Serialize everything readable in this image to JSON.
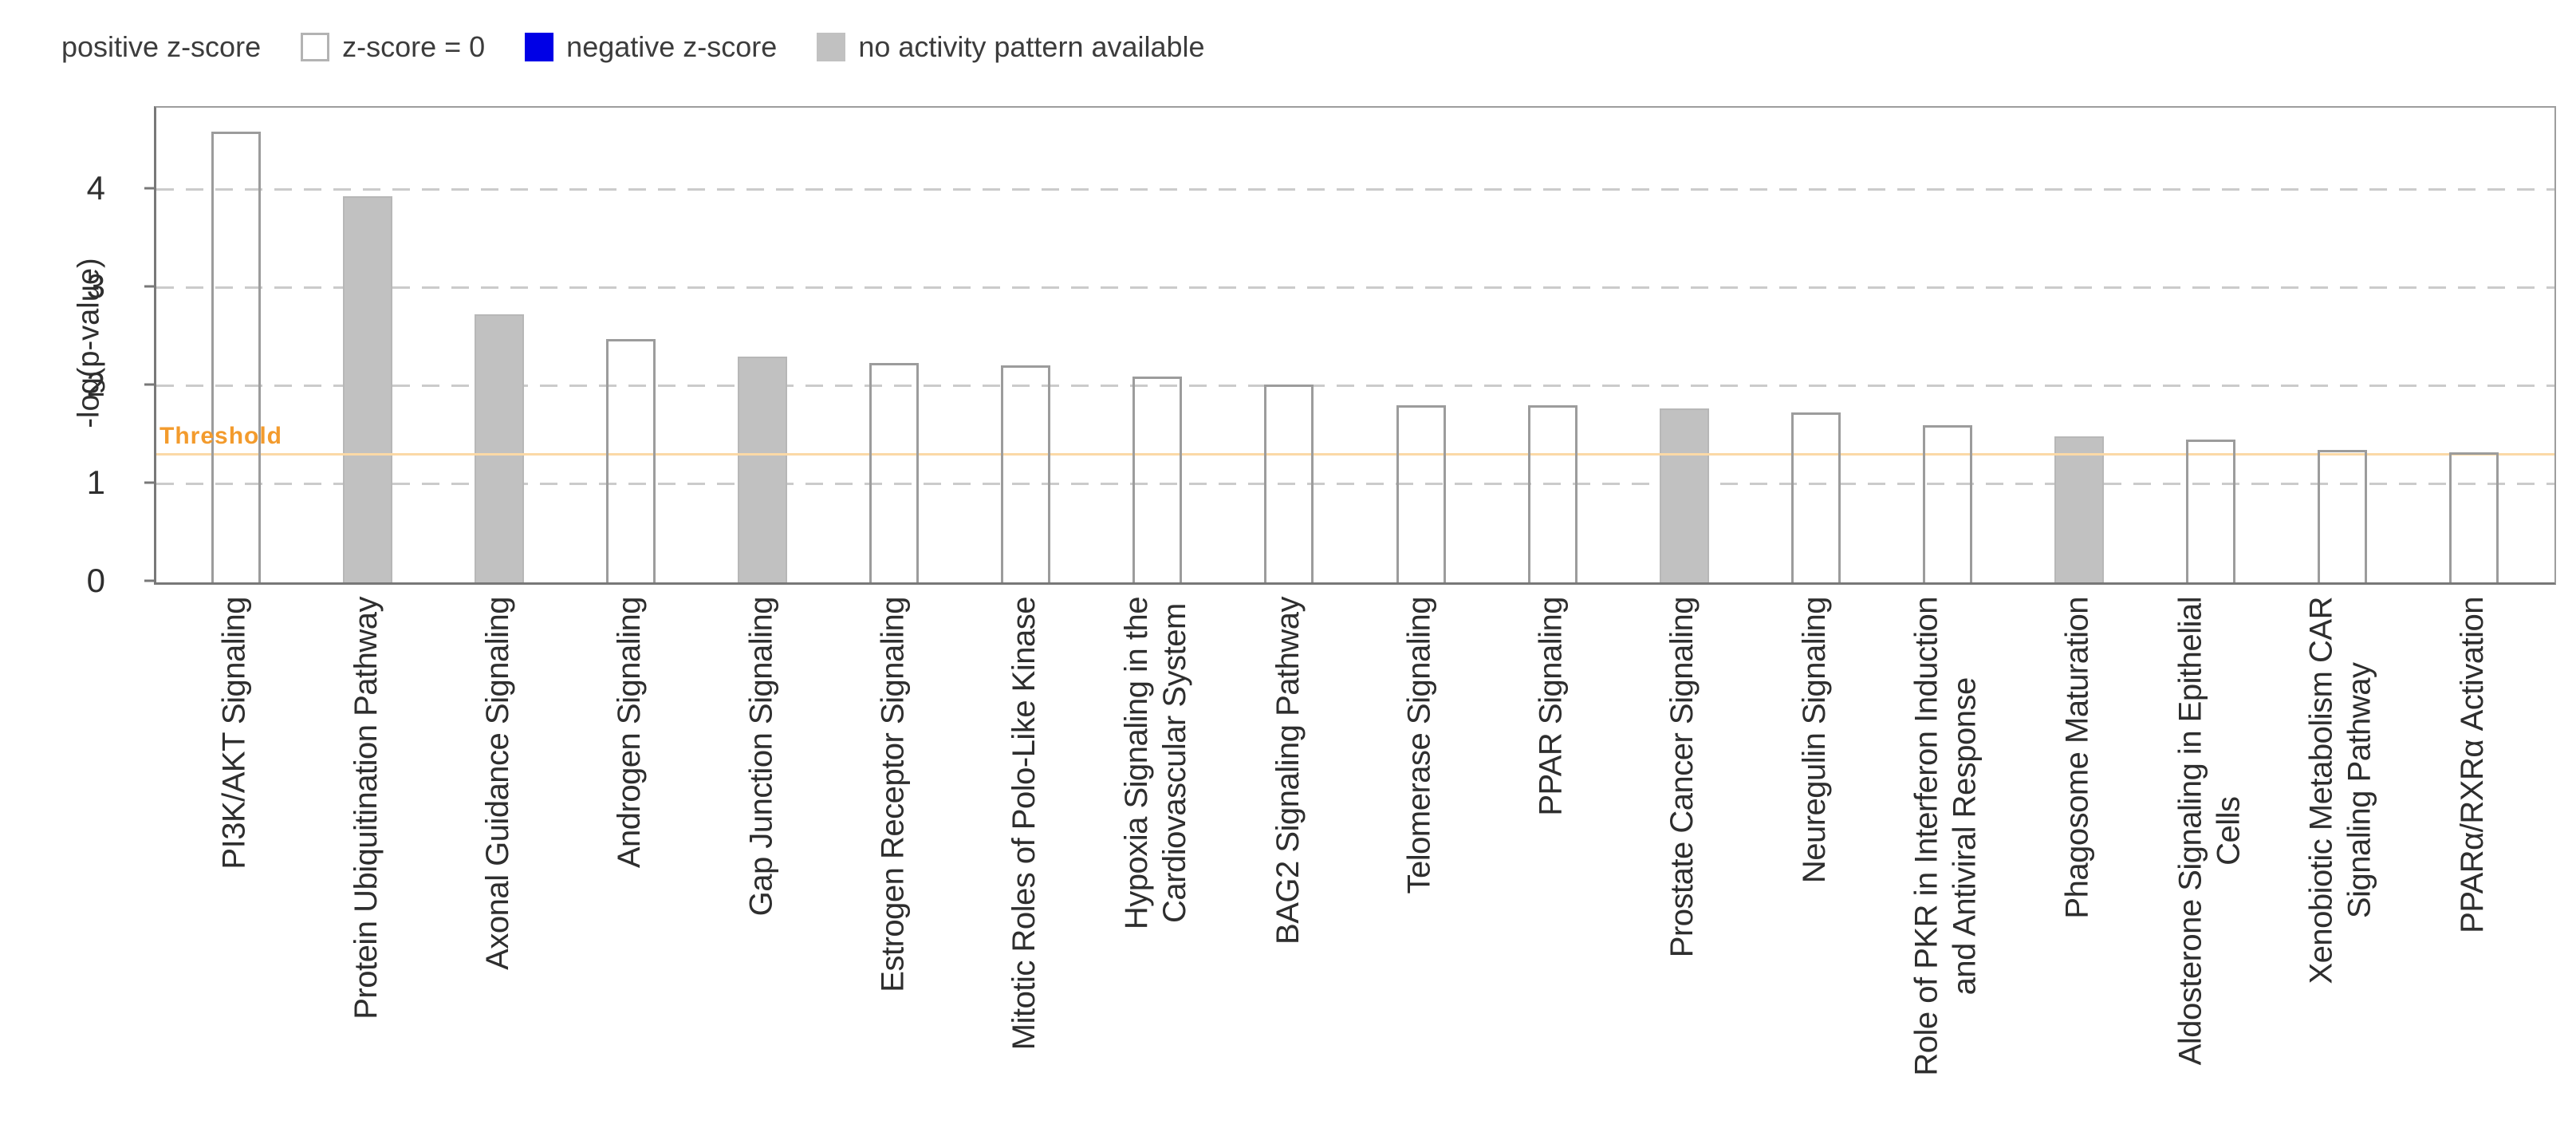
{
  "chart_data": {
    "type": "bar",
    "title": "",
    "xlabel": "",
    "ylabel": "-log(p-value)",
    "ylim": [
      0,
      4.84
    ],
    "yticks": [
      0,
      1,
      2,
      3,
      4
    ],
    "grid": "dashed horizontal gridlines at integer ticks",
    "legend_position": "top-left",
    "legend": [
      {
        "label": "positive z-score",
        "swatch": "none"
      },
      {
        "label": "z-score = 0",
        "swatch": "white"
      },
      {
        "label": "negative z-score",
        "swatch": "blue"
      },
      {
        "label": "no activity pattern available",
        "swatch": "gray"
      }
    ],
    "threshold": {
      "label": "Threshold",
      "value": 1.3
    },
    "bars": [
      {
        "category": "PI3K/AKT Signaling",
        "value": 4.6,
        "fill": "white"
      },
      {
        "category": "Protein Ubiquitination Pathway",
        "value": 3.94,
        "fill": "gray"
      },
      {
        "category": "Axonal Guidance Signaling",
        "value": 2.73,
        "fill": "gray"
      },
      {
        "category": "Androgen Signaling",
        "value": 2.48,
        "fill": "white"
      },
      {
        "category": "Gap Junction Signaling",
        "value": 2.3,
        "fill": "gray"
      },
      {
        "category": "Estrogen Receptor Signaling",
        "value": 2.24,
        "fill": "white"
      },
      {
        "category": "Mitotic Roles of Polo-Like Kinase",
        "value": 2.21,
        "fill": "white"
      },
      {
        "category": "Hypoxia Signaling in the\nCardiovascular System",
        "value": 2.1,
        "fill": "white"
      },
      {
        "category": "BAG2 Signaling Pathway",
        "value": 2.02,
        "fill": "white"
      },
      {
        "category": "Telomerase Signaling",
        "value": 1.81,
        "fill": "white"
      },
      {
        "category": "PPAR Signaling",
        "value": 1.81,
        "fill": "white"
      },
      {
        "category": "Prostate Cancer Signaling",
        "value": 1.77,
        "fill": "gray"
      },
      {
        "category": "Neuregulin Signaling",
        "value": 1.73,
        "fill": "white"
      },
      {
        "category": "Role of PKR in Interferon Induction\nand Antiviral Response",
        "value": 1.6,
        "fill": "white"
      },
      {
        "category": "Phagosome Maturation",
        "value": 1.49,
        "fill": "gray"
      },
      {
        "category": "Aldosterone Signaling in Epithelial\nCells",
        "value": 1.46,
        "fill": "white"
      },
      {
        "category": "Xenobiotic Metabolism CAR\nSignaling Pathway",
        "value": 1.35,
        "fill": "white"
      },
      {
        "category": "PPARα/RXRα Activation",
        "value": 1.33,
        "fill": "white"
      }
    ],
    "colors": {
      "negative_z_score_blue": "#0000e6",
      "no_activity_gray": "#c1c1c1",
      "bar_outline": "#9c9c9c",
      "threshold_line": "#fbd9a6",
      "threshold_text": "#f39b2d",
      "gridline": "#cbcbcb",
      "axis": "#787878",
      "text": "#2e2e2e"
    }
  }
}
